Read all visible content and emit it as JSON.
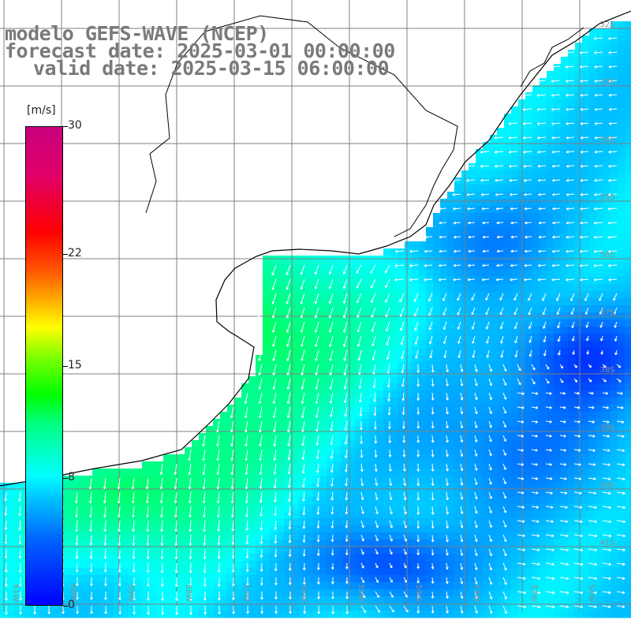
{
  "title": {
    "line1": "modelo GEFS-WAVE (NCEP)",
    "line2": "forecast date: 2025-03-01 00:00:00",
    "line3": "valid date: 2025-03-15 06:00:00"
  },
  "colorbar": {
    "unit": "[m/s]",
    "ticks": [
      {
        "label": "30",
        "value": 30
      },
      {
        "label": "22",
        "value": 22
      },
      {
        "label": "15",
        "value": 15
      },
      {
        "label": "8",
        "value": 8
      },
      {
        "label": "0",
        "value": 0
      }
    ],
    "range": [
      0,
      30
    ]
  },
  "map": {
    "lat_labels": [
      "32S",
      "33S",
      "34S",
      "35S",
      "36S",
      "37S",
      "38S",
      "39S",
      "40S",
      "41S"
    ],
    "lon_labels": [
      "61W",
      "60W",
      "59W",
      "58W",
      "57W",
      "56W",
      "55W",
      "54W",
      "53W",
      "52W",
      "51W"
    ],
    "colors": {
      "land": "#ffffff",
      "coast": "#000000",
      "grid": "#808080",
      "arrow": "#ffffff",
      "label": "#909090"
    }
  }
}
